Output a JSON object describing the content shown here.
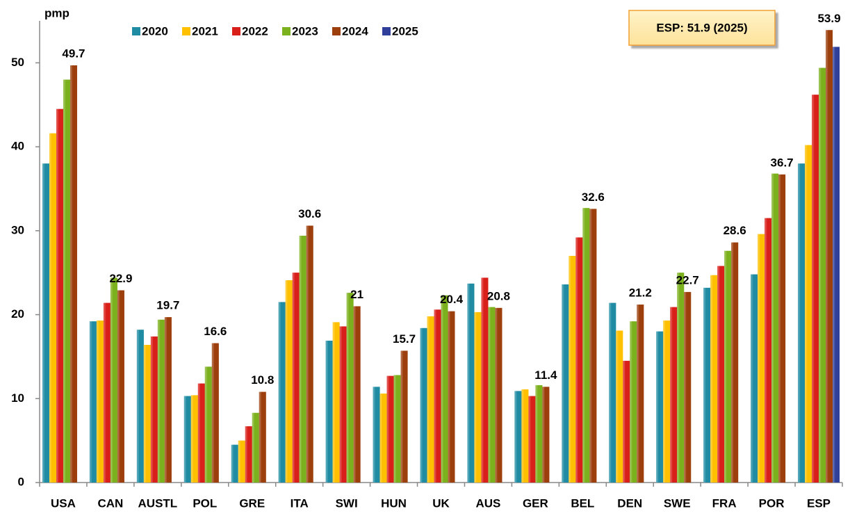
{
  "chart_data": {
    "type": "bar",
    "y_label": "pmp",
    "annotation": "ESP: 51.9 (2025)",
    "categories": [
      "USA",
      "CAN",
      "AUSTL",
      "POL",
      "GRE",
      "ITA",
      "SWI",
      "HUN",
      "UK",
      "AUS",
      "GER",
      "BEL",
      "DEN",
      "SWE",
      "FRA",
      "POR",
      "ESP"
    ],
    "series": [
      {
        "name": "2020",
        "color": "#1f8ca3",
        "values": [
          38.0,
          19.2,
          18.2,
          10.3,
          4.5,
          21.5,
          16.9,
          11.4,
          18.4,
          23.7,
          10.9,
          23.6,
          21.4,
          18.0,
          23.2,
          24.8,
          38.0
        ]
      },
      {
        "name": "2021",
        "color": "#ffc000",
        "values": [
          41.6,
          19.3,
          16.4,
          10.4,
          5.0,
          24.1,
          19.1,
          10.6,
          19.8,
          20.3,
          11.1,
          27.0,
          18.1,
          19.3,
          24.7,
          29.6,
          40.2
        ]
      },
      {
        "name": "2022",
        "color": "#d91f1a",
        "values": [
          44.5,
          21.4,
          17.4,
          11.8,
          6.7,
          25.0,
          18.6,
          12.7,
          20.6,
          24.4,
          10.3,
          29.2,
          14.5,
          20.9,
          25.8,
          31.5,
          46.2
        ]
      },
      {
        "name": "2023",
        "color": "#7cb11e",
        "values": [
          48.0,
          24.4,
          19.4,
          13.8,
          8.3,
          29.4,
          22.6,
          12.8,
          22.3,
          20.9,
          11.6,
          32.7,
          19.2,
          25.0,
          27.6,
          36.8,
          49.4
        ]
      },
      {
        "name": "2024",
        "color": "#9c3f0c",
        "show_labels": true,
        "values": [
          49.7,
          22.9,
          19.7,
          16.6,
          10.8,
          30.6,
          21,
          15.7,
          20.4,
          20.8,
          11.4,
          32.6,
          21.2,
          22.7,
          28.6,
          36.7,
          53.9
        ]
      },
      {
        "name": "2025",
        "color": "#2f3f9a",
        "values": [
          null,
          null,
          null,
          null,
          null,
          null,
          null,
          null,
          null,
          null,
          null,
          null,
          null,
          null,
          null,
          null,
          51.9
        ]
      }
    ],
    "ylim": [
      0,
      55
    ],
    "yticks": [
      0,
      10,
      20,
      30,
      40,
      50
    ]
  }
}
